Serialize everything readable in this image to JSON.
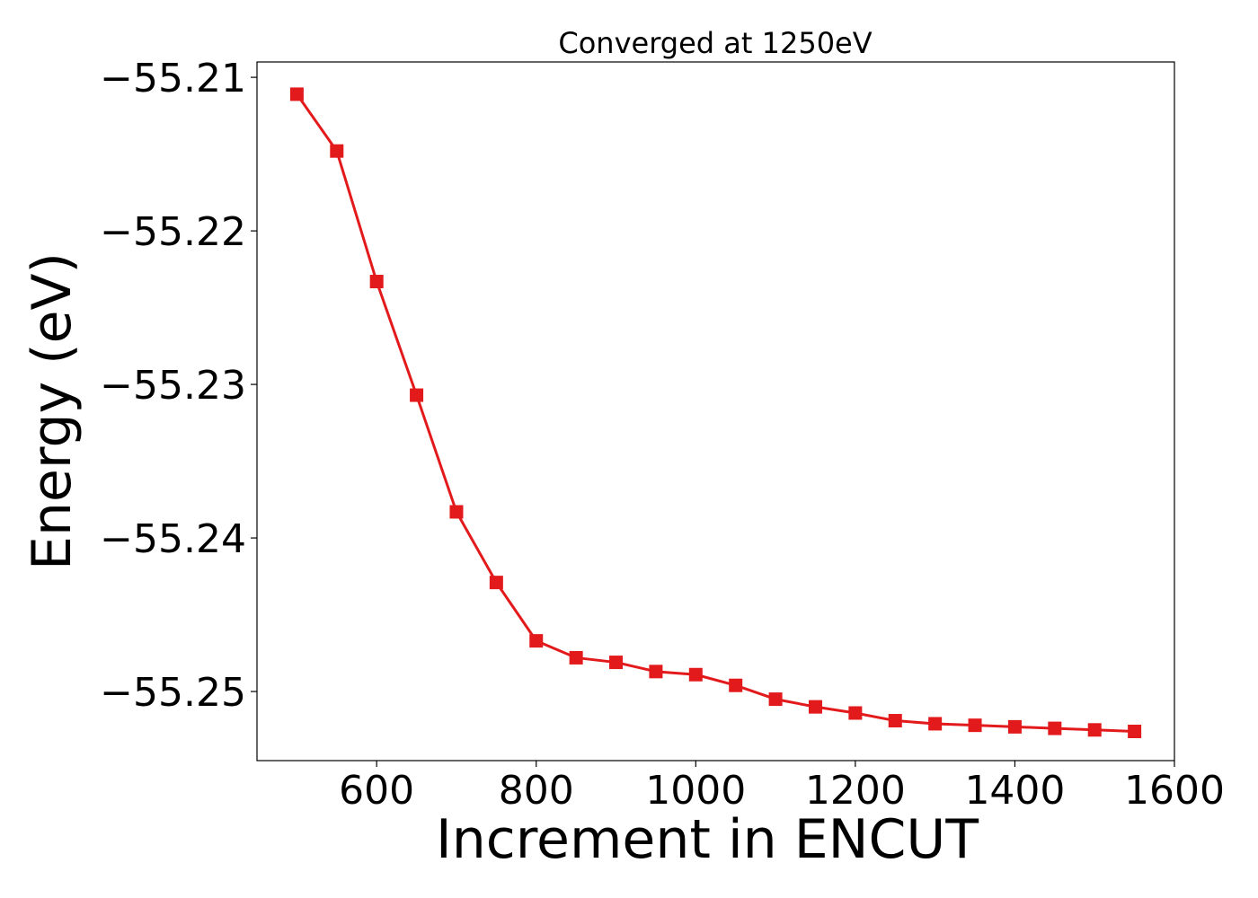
{
  "chart_data": {
    "type": "line",
    "title": "Converged at 1250eV",
    "xlabel": "Increment in ENCUT",
    "ylabel": "Energy (eV)",
    "xlim": [
      450,
      1600
    ],
    "ylim": [
      -55.2545,
      -55.209
    ],
    "x_ticks": [
      600,
      800,
      1000,
      1200,
      1400,
      1600
    ],
    "x_tick_labels": [
      "600",
      "800",
      "1000",
      "1200",
      "1400",
      "1600"
    ],
    "y_ticks": [
      -55.21,
      -55.22,
      -55.23,
      -55.24,
      -55.25
    ],
    "y_tick_labels": [
      "−55.21",
      "−55.22",
      "−55.23",
      "−55.24",
      "−55.25"
    ],
    "grid": false,
    "series": [
      {
        "color": "#e31a1c",
        "marker": "square",
        "x": [
          500,
          550,
          600,
          650,
          700,
          750,
          800,
          850,
          900,
          950,
          1000,
          1050,
          1100,
          1150,
          1200,
          1250,
          1300,
          1350,
          1400,
          1450,
          1500,
          1550
        ],
        "y": [
          -55.2111,
          -55.2148,
          -55.2233,
          -55.2307,
          -55.2383,
          -55.2429,
          -55.2467,
          -55.2478,
          -55.2481,
          -55.2487,
          -55.2489,
          -55.2496,
          -55.2505,
          -55.251,
          -55.2514,
          -55.2519,
          -55.2521,
          -55.2522,
          -55.2523,
          -55.2524,
          -55.2525,
          -55.2526
        ]
      }
    ]
  }
}
